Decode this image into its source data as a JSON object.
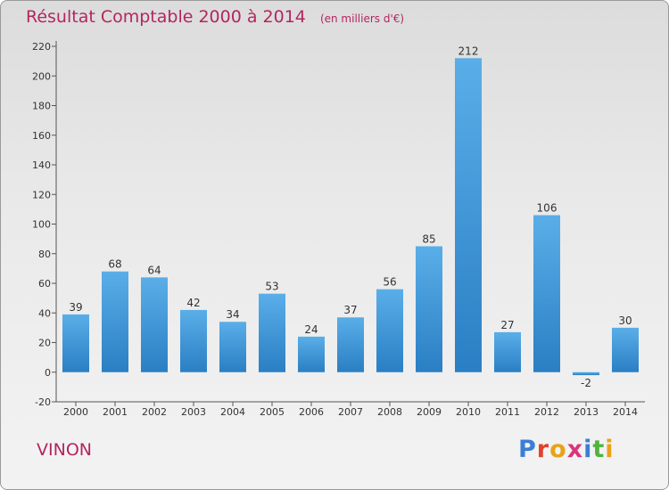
{
  "header": {
    "title": "Résultat Comptable 2000 à 2014",
    "subtitle": "(en milliers d'€)"
  },
  "footer": {
    "place_name": "VINON",
    "logo_text": "Proxiti"
  },
  "colors": {
    "title": "#b3265f",
    "bar_light": "#5aaee8",
    "bar_dark": "#2a7fc4",
    "logo_letters": [
      "#3a7fd5",
      "#e0422b",
      "#e8a21a",
      "#d9367a",
      "#3a7fd5",
      "#4fb43f",
      "#e8a21a"
    ]
  },
  "chart_data": {
    "type": "bar",
    "categories": [
      "2000",
      "2001",
      "2002",
      "2003",
      "2004",
      "2005",
      "2006",
      "2007",
      "2008",
      "2009",
      "2010",
      "2011",
      "2012",
      "2013",
      "2014"
    ],
    "values": [
      39,
      68,
      64,
      42,
      34,
      53,
      24,
      37,
      56,
      85,
      212,
      27,
      106,
      -2,
      30
    ],
    "ylim": [
      -20,
      220
    ],
    "yticks": [
      -20,
      0,
      20,
      40,
      60,
      80,
      100,
      120,
      140,
      160,
      180,
      200,
      220
    ],
    "grid": false,
    "xlabel": "",
    "ylabel": ""
  }
}
